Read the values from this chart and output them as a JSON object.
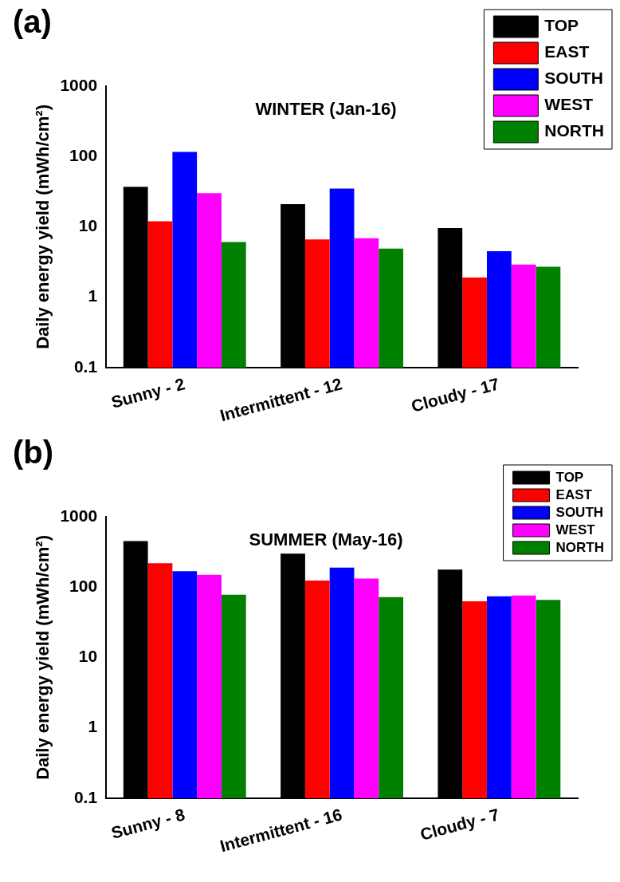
{
  "chart_data": [
    {
      "type": "bar",
      "title": "WINTER (Jan-16)",
      "ylabel": "Daily energy yield (mWh/cm²)",
      "annotations": [
        "(a)"
      ],
      "categories": [
        "Sunny - 2",
        "Intermittent - 12",
        "Cloudy - 17"
      ],
      "series": [
        {
          "name": "TOP",
          "color": "#000000",
          "values": [
            37,
            21,
            9.6
          ]
        },
        {
          "name": "EAST",
          "color": "#ff0000",
          "values": [
            12,
            6.6,
            1.9
          ]
        },
        {
          "name": "SOUTH",
          "color": "#0000ff",
          "values": [
            116,
            35,
            4.5
          ]
        },
        {
          "name": "WEST",
          "color": "#ff00ff",
          "values": [
            30,
            6.9,
            2.9
          ]
        },
        {
          "name": "NORTH",
          "color": "#008000",
          "values": [
            6.1,
            4.9,
            2.7
          ]
        }
      ],
      "log": true,
      "ylim": [
        0.1,
        1000
      ],
      "yticks": [
        0.1,
        1,
        10,
        100,
        1000
      ],
      "grid": false,
      "legend": "top right"
    },
    {
      "type": "bar",
      "title": "SUMMER (May-16)",
      "ylabel": "Daily energy yield (mWh/cm²)",
      "annotations": [
        "(b)"
      ],
      "categories": [
        "Sunny - 8",
        "Intermittent - 16",
        "Cloudy - 7"
      ],
      "series": [
        {
          "name": "TOP",
          "color": "#000000",
          "values": [
            450,
            300,
            177
          ]
        },
        {
          "name": "EAST",
          "color": "#ff0000",
          "values": [
            218,
            124,
            63
          ]
        },
        {
          "name": "SOUTH",
          "color": "#0000ff",
          "values": [
            168,
            189,
            74
          ]
        },
        {
          "name": "WEST",
          "color": "#ff00ff",
          "values": [
            150,
            132,
            76
          ]
        },
        {
          "name": "NORTH",
          "color": "#008000",
          "values": [
            78,
            72,
            66
          ]
        }
      ],
      "log": true,
      "ylim": [
        0.1,
        1000
      ],
      "yticks": [
        0.1,
        1,
        10,
        100,
        1000
      ],
      "grid": false,
      "legend": "top right"
    }
  ]
}
